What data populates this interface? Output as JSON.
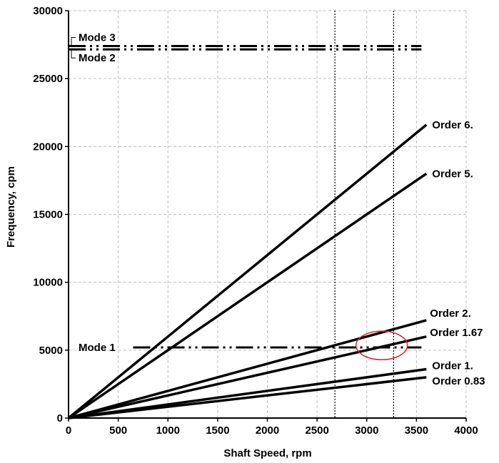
{
  "chart_data": {
    "type": "line",
    "xlabel": "Shaft Speed, rpm",
    "ylabel": "Frequency, cpm",
    "xlim": [
      0,
      4000
    ],
    "ylim": [
      0,
      30000
    ],
    "x_ticks": [
      "0",
      "500",
      "1000",
      "1500",
      "2000",
      "2500",
      "3000",
      "3500",
      "4000"
    ],
    "y_ticks": [
      "0",
      "5000",
      "10000",
      "15000",
      "20000",
      "25000",
      "30000"
    ],
    "grid": true,
    "series": [
      {
        "name": "Order 6.",
        "points": [
          [
            0,
            0
          ],
          [
            3600,
            21600
          ]
        ]
      },
      {
        "name": "Order 5.",
        "points": [
          [
            0,
            0
          ],
          [
            3600,
            18000
          ]
        ]
      },
      {
        "name": "Order 2.",
        "points": [
          [
            0,
            0
          ],
          [
            3600,
            7200
          ]
        ]
      },
      {
        "name": "Order 1.67",
        "points": [
          [
            0,
            0
          ],
          [
            3600,
            6000
          ]
        ]
      },
      {
        "name": "Order 1.",
        "points": [
          [
            0,
            0
          ],
          [
            3600,
            3600
          ]
        ]
      },
      {
        "name": "Order 0.83",
        "points": [
          [
            0,
            0
          ],
          [
            3600,
            3000
          ]
        ]
      }
    ],
    "modes": [
      {
        "name": "Mode 3",
        "value": 27400
      },
      {
        "name": "Mode 2",
        "value": 27150
      },
      {
        "name": "Mode 1",
        "value": 5200
      }
    ],
    "reference_lines_x": [
      2680,
      3270
    ],
    "annotation": {
      "type": "ellipse",
      "color": "#e02020",
      "center": [
        3150,
        5350
      ]
    },
    "colors": {
      "series": "#000000",
      "grid": "#bfbfbf",
      "highlight": "#e02020"
    }
  }
}
